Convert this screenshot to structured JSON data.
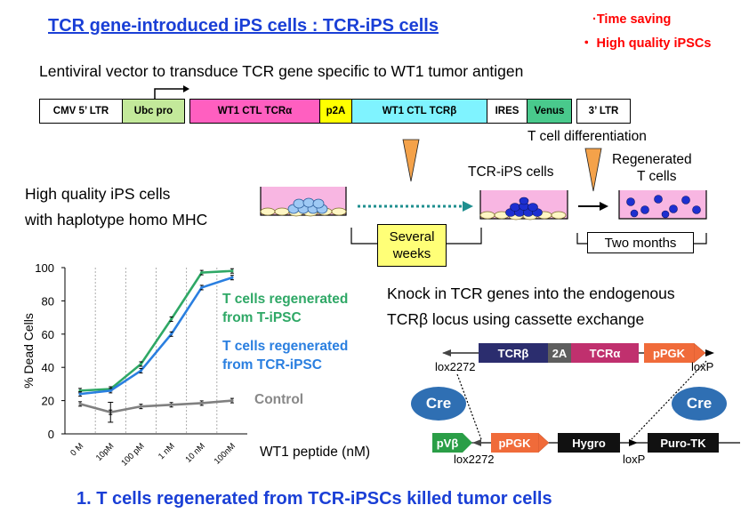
{
  "title": "TCR gene-introduced iPS cells : TCR-iPS cells",
  "notes": [
    "·Time saving",
    "・ High quality iPSCs"
  ],
  "vector": {
    "caption": "Lentiviral vector to transduce TCR gene specific to WT1 tumor antigen",
    "segments": [
      "CMV 5’ LTR",
      "Ubc pro",
      "WT1 CTL TCRα",
      "p2A",
      "WT1 CTL TCRβ",
      "IRES",
      "Venus",
      "3’ LTR"
    ]
  },
  "workflow": {
    "hq_line1": "High quality iPS cells",
    "hq_line2": "with haplotype homo MHC",
    "several_weeks": "Several\nweeks",
    "tcr_ips_label": "TCR-iPS cells",
    "t_cell_diff": "T cell differentiation",
    "regenerated_line1": "Regenerated",
    "regenerated_line2": "T cells",
    "two_months": "Two months"
  },
  "knockin": {
    "line1": "Knock in TCR genes into the endogenous",
    "line2": "TCRβ locus using cassette exchange",
    "top_genes": [
      "TCRβ",
      "2A",
      "TCRα",
      "pPGK"
    ],
    "bottom_genes": [
      "pVβ",
      "pPGK",
      "Hygro",
      "Puro-TK"
    ],
    "lox2272_top": "lox2272",
    "loxP_top": "loxP",
    "lox2272_bottom": "lox2272",
    "loxP_bottom": "loxP",
    "cre": "Cre"
  },
  "chart_data": {
    "type": "line",
    "xlabel": "WT1 peptide (nM)",
    "ylabel": "% Dead Cells",
    "categories": [
      "0 M",
      "10pM",
      "100 pM",
      "1 nM",
      "10 nM",
      "100nM"
    ],
    "ylim": [
      0,
      100
    ],
    "yticks": [
      0,
      20,
      40,
      60,
      80,
      100
    ],
    "series": [
      {
        "name": "T cells regenerated from T-iPSC",
        "color": "#2fa866",
        "values": [
          26,
          27,
          42,
          69,
          97,
          98
        ]
      },
      {
        "name": "T cells regenerated from TCR-iPSC",
        "color": "#2a7fe0",
        "values": [
          24,
          26,
          38,
          60,
          88,
          94
        ]
      },
      {
        "name": "Control",
        "color": "#808080",
        "values": [
          18,
          13,
          16.5,
          17.5,
          18.5,
          20
        ]
      }
    ]
  },
  "legend": {
    "green_line1": "T cells regenerated",
    "green_line2": "from T-iPSC",
    "blue_line1": "T cells regenerated",
    "blue_line2": "from TCR-iPSC",
    "gray": "Control"
  },
  "conclusion": "1. T cells regenerated from TCR-iPSCs killed tumor cells"
}
